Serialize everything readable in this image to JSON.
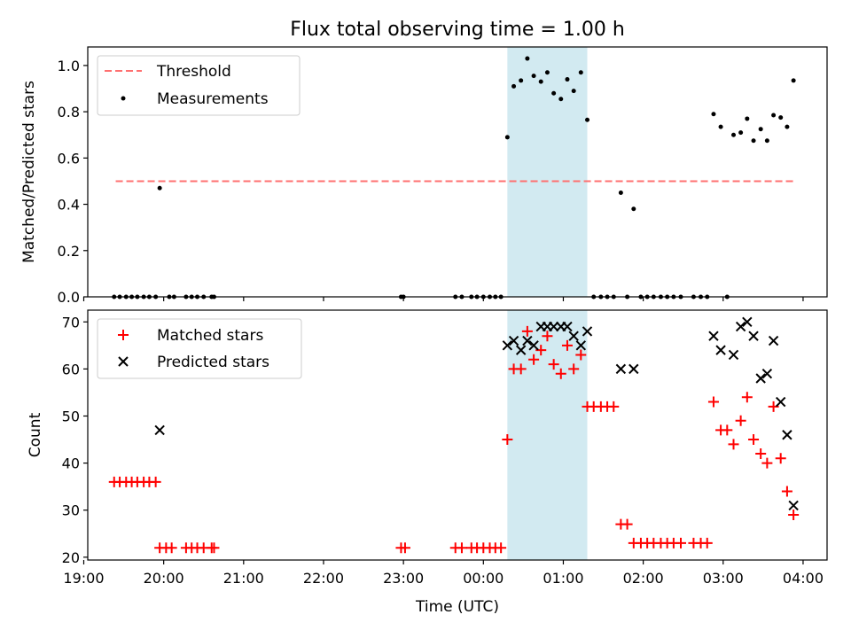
{
  "title": "Flux total observing time = 1.00 h",
  "colors": {
    "threshold": "#ff7070",
    "measurement": "#000000",
    "matched": "#ff0000",
    "predicted": "#000000",
    "highlight": "#add8e6"
  },
  "chart_data": [
    {
      "type": "scatter",
      "panel": "top",
      "ylabel": "Matched/Predicted stars",
      "ylim": [
        0,
        1.08
      ],
      "yticks": [
        "0.0",
        "0.2",
        "0.4",
        "0.6",
        "0.8",
        "1.0"
      ],
      "xlim_hours": [
        -4.95,
        4.3
      ],
      "highlight_hours": [
        0.3,
        1.3
      ],
      "legend": {
        "position": "top-left",
        "threshold": "Threshold",
        "measurements": "Measurements"
      },
      "threshold": {
        "value": 0.5,
        "x_hours": [
          -4.6,
          3.9
        ]
      },
      "measurements": [
        [
          -4.62,
          0
        ],
        [
          -4.55,
          0
        ],
        [
          -4.47,
          0
        ],
        [
          -4.4,
          0
        ],
        [
          -4.33,
          0
        ],
        [
          -4.25,
          0
        ],
        [
          -4.18,
          0
        ],
        [
          -4.1,
          0
        ],
        [
          -4.05,
          0.47
        ],
        [
          -3.93,
          0
        ],
        [
          -3.87,
          0
        ],
        [
          -3.72,
          0
        ],
        [
          -3.65,
          0
        ],
        [
          -3.58,
          0
        ],
        [
          -3.5,
          0
        ],
        [
          -3.4,
          0
        ],
        [
          -3.37,
          0
        ],
        [
          -1.03,
          0
        ],
        [
          -1.0,
          0
        ],
        [
          -0.35,
          0
        ],
        [
          -0.27,
          0
        ],
        [
          -0.15,
          0
        ],
        [
          -0.08,
          0
        ],
        [
          0.0,
          0
        ],
        [
          0.08,
          0
        ],
        [
          0.15,
          0
        ],
        [
          0.22,
          0
        ],
        [
          0.3,
          0.69
        ],
        [
          0.38,
          0.91
        ],
        [
          0.47,
          0.935
        ],
        [
          0.55,
          1.03
        ],
        [
          0.63,
          0.955
        ],
        [
          0.72,
          0.93
        ],
        [
          0.8,
          0.97
        ],
        [
          0.88,
          0.88
        ],
        [
          0.97,
          0.855
        ],
        [
          1.05,
          0.94
        ],
        [
          1.13,
          0.89
        ],
        [
          1.22,
          0.97
        ],
        [
          1.3,
          0.765
        ],
        [
          1.38,
          0
        ],
        [
          1.47,
          0
        ],
        [
          1.55,
          0
        ],
        [
          1.63,
          0
        ],
        [
          1.72,
          0.45
        ],
        [
          1.8,
          0
        ],
        [
          1.88,
          0.38
        ],
        [
          1.97,
          0
        ],
        [
          2.05,
          0
        ],
        [
          2.13,
          0
        ],
        [
          2.22,
          0
        ],
        [
          2.3,
          0
        ],
        [
          2.38,
          0
        ],
        [
          2.47,
          0
        ],
        [
          2.63,
          0
        ],
        [
          2.72,
          0
        ],
        [
          2.8,
          0
        ],
        [
          2.88,
          0.79
        ],
        [
          2.97,
          0.735
        ],
        [
          3.05,
          0
        ],
        [
          3.13,
          0.7
        ],
        [
          3.22,
          0.71
        ],
        [
          3.3,
          0.77
        ],
        [
          3.38,
          0.675
        ],
        [
          3.47,
          0.725
        ],
        [
          3.55,
          0.675
        ],
        [
          3.63,
          0.785
        ],
        [
          3.72,
          0.775
        ],
        [
          3.8,
          0.735
        ],
        [
          3.88,
          0.935
        ]
      ]
    },
    {
      "type": "scatter",
      "panel": "bottom",
      "xlabel": "Time (UTC)",
      "ylabel": "Count",
      "ylim": [
        19.4,
        72.5
      ],
      "yticks": [
        "20",
        "30",
        "40",
        "50",
        "60",
        "70"
      ],
      "xlim_hours": [
        -4.95,
        4.3
      ],
      "xticks": [
        "19:00",
        "20:00",
        "21:00",
        "22:00",
        "23:00",
        "00:00",
        "01:00",
        "02:00",
        "03:00",
        "04:00"
      ],
      "xtick_hours": [
        -5,
        -4,
        -3,
        -2,
        -1,
        0,
        1,
        2,
        3,
        4
      ],
      "highlight_hours": [
        0.3,
        1.3
      ],
      "legend": {
        "position": "top-left",
        "matched": "Matched stars",
        "predicted": "Predicted stars"
      },
      "matched": [
        [
          -4.62,
          36
        ],
        [
          -4.55,
          36
        ],
        [
          -4.47,
          36
        ],
        [
          -4.4,
          36
        ],
        [
          -4.33,
          36
        ],
        [
          -4.25,
          36
        ],
        [
          -4.18,
          36
        ],
        [
          -4.1,
          36
        ],
        [
          -4.05,
          22
        ],
        [
          -3.97,
          22
        ],
        [
          -3.9,
          22
        ],
        [
          -3.72,
          22
        ],
        [
          -3.65,
          22
        ],
        [
          -3.58,
          22
        ],
        [
          -3.5,
          22
        ],
        [
          -3.4,
          22
        ],
        [
          -3.37,
          22
        ],
        [
          -1.03,
          22
        ],
        [
          -0.98,
          22
        ],
        [
          -0.35,
          22
        ],
        [
          -0.27,
          22
        ],
        [
          -0.15,
          22
        ],
        [
          -0.08,
          22
        ],
        [
          0.0,
          22
        ],
        [
          0.08,
          22
        ],
        [
          0.15,
          22
        ],
        [
          0.22,
          22
        ],
        [
          0.3,
          45
        ],
        [
          0.38,
          60
        ],
        [
          0.47,
          60
        ],
        [
          0.55,
          68
        ],
        [
          0.63,
          62
        ],
        [
          0.72,
          64
        ],
        [
          0.8,
          67
        ],
        [
          0.88,
          61
        ],
        [
          0.97,
          59
        ],
        [
          1.05,
          65
        ],
        [
          1.13,
          60
        ],
        [
          1.22,
          63
        ],
        [
          1.3,
          52
        ],
        [
          1.38,
          52
        ],
        [
          1.47,
          52
        ],
        [
          1.55,
          52
        ],
        [
          1.63,
          52
        ],
        [
          1.72,
          27
        ],
        [
          1.8,
          27
        ],
        [
          1.88,
          23
        ],
        [
          1.97,
          23
        ],
        [
          2.05,
          23
        ],
        [
          2.13,
          23
        ],
        [
          2.22,
          23
        ],
        [
          2.3,
          23
        ],
        [
          2.38,
          23
        ],
        [
          2.47,
          23
        ],
        [
          2.63,
          23
        ],
        [
          2.72,
          23
        ],
        [
          2.8,
          23
        ],
        [
          2.88,
          53
        ],
        [
          2.97,
          47
        ],
        [
          3.05,
          47
        ],
        [
          3.13,
          44
        ],
        [
          3.22,
          49
        ],
        [
          3.3,
          54
        ],
        [
          3.38,
          45
        ],
        [
          3.47,
          42
        ],
        [
          3.55,
          40
        ],
        [
          3.63,
          52
        ],
        [
          3.72,
          41
        ],
        [
          3.8,
          34
        ],
        [
          3.88,
          29
        ]
      ],
      "predicted": [
        [
          -4.05,
          47
        ],
        [
          0.3,
          65
        ],
        [
          0.38,
          66
        ],
        [
          0.47,
          64
        ],
        [
          0.55,
          66
        ],
        [
          0.63,
          65
        ],
        [
          0.72,
          69
        ],
        [
          0.8,
          69
        ],
        [
          0.88,
          69
        ],
        [
          0.97,
          69
        ],
        [
          1.05,
          69
        ],
        [
          1.13,
          67
        ],
        [
          1.22,
          65
        ],
        [
          1.3,
          68
        ],
        [
          1.72,
          60
        ],
        [
          1.88,
          60
        ],
        [
          2.88,
          67
        ],
        [
          2.97,
          64
        ],
        [
          3.13,
          63
        ],
        [
          3.22,
          69
        ],
        [
          3.3,
          70
        ],
        [
          3.38,
          67
        ],
        [
          3.47,
          58
        ],
        [
          3.55,
          59
        ],
        [
          3.63,
          66
        ],
        [
          3.72,
          53
        ],
        [
          3.8,
          46
        ],
        [
          3.88,
          31
        ]
      ]
    }
  ]
}
